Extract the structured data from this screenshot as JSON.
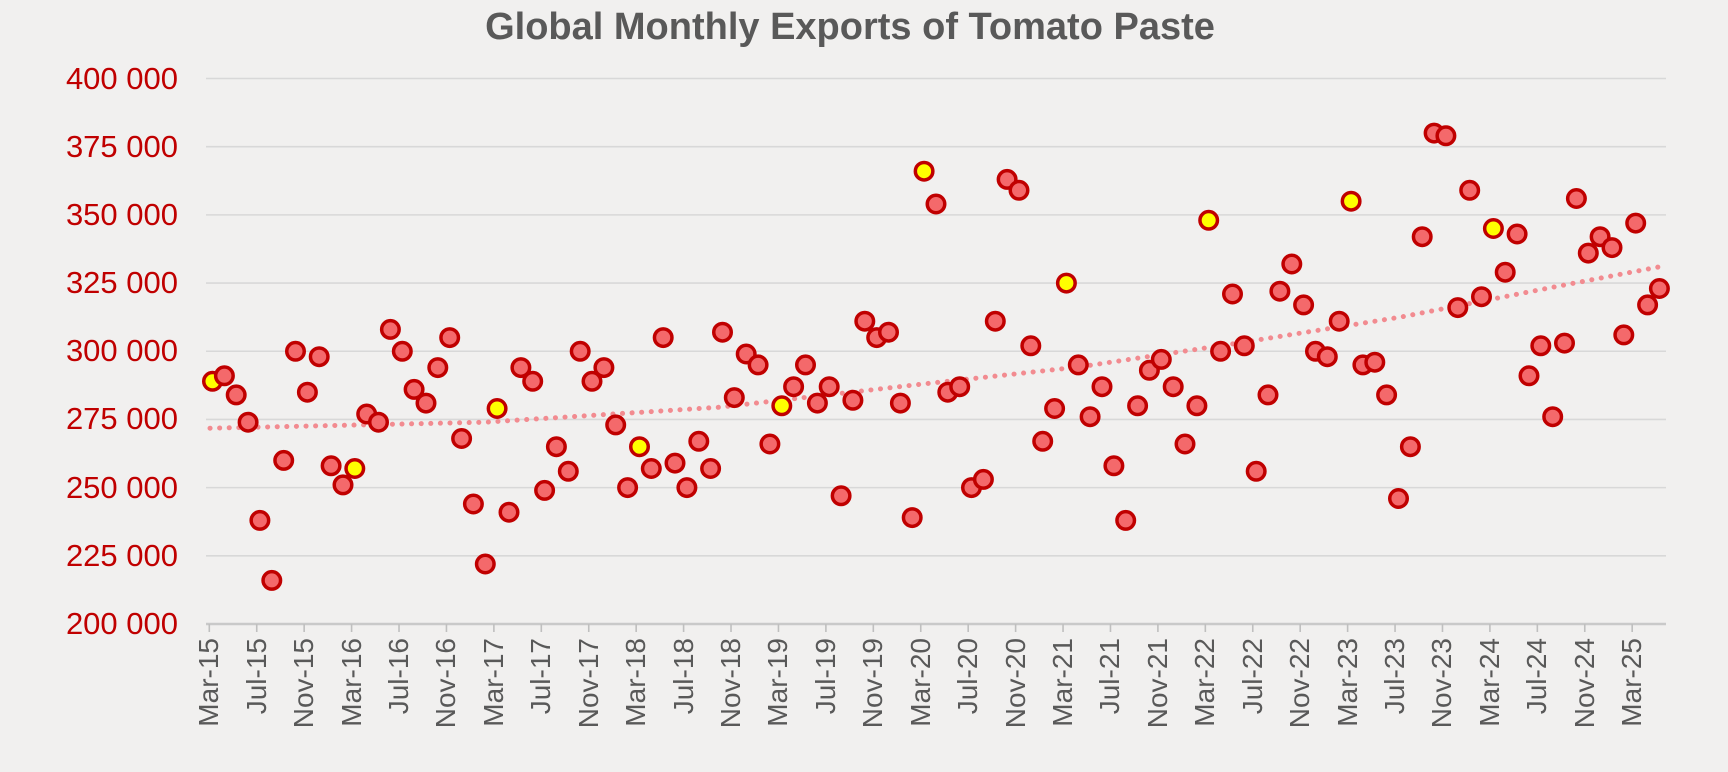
{
  "title": "Global Monthly Exports of Tomato Paste",
  "colors": {
    "background": "#f1f0ef",
    "gridline": "#d8d8d8",
    "axis_line": "#c9c9c9",
    "tick_mark": "#bfbfbf",
    "y_label": "#c00000",
    "x_label": "#595959",
    "title": "#595959",
    "marker_fill": "#f4696b",
    "marker_border": "#c00000",
    "highlight_fill": "#ffff00",
    "trend": "#f28b90"
  },
  "y_axis": {
    "tick_labels": [
      "400 000",
      "375 000",
      "350 000",
      "325 000",
      "300 000",
      "275 000",
      "250 000",
      "225 000",
      "200 000"
    ],
    "min": 200000,
    "max": 400000,
    "step": 25000
  },
  "x_axis": {
    "tick_labels": [
      "Mar-15",
      "Jul-15",
      "Nov-15",
      "Mar-16",
      "Jul-16",
      "Nov-16",
      "Mar-17",
      "Jul-17",
      "Nov-17",
      "Mar-18",
      "Jul-18",
      "Nov-18",
      "Mar-19",
      "Jul-19",
      "Nov-19",
      "Mar-20",
      "Jul-20",
      "Nov-20",
      "Mar-21",
      "Jul-21",
      "Nov-21",
      "Mar-22",
      "Jul-22",
      "Nov-22",
      "Mar-23",
      "Jul-23",
      "Nov-23",
      "Mar-24",
      "Jul-24",
      "Nov-24",
      "Mar-25"
    ]
  },
  "chart_data": {
    "type": "scatter",
    "title": "Global Monthly Exports of Tomato Paste",
    "xlabel": "",
    "ylabel": "",
    "ylim": [
      200000,
      400000
    ],
    "grid": true,
    "legend": false,
    "series_note": "monthly points Mar-15 through May-25; third field 1 = yellow highlighted marker",
    "points": [
      [
        "Mar-15",
        289000,
        1
      ],
      [
        "Apr-15",
        291000,
        0
      ],
      [
        "May-15",
        284000,
        0
      ],
      [
        "Jun-15",
        274000,
        0
      ],
      [
        "Jul-15",
        238000,
        0
      ],
      [
        "Aug-15",
        216000,
        0
      ],
      [
        "Sep-15",
        260000,
        0
      ],
      [
        "Oct-15",
        300000,
        0
      ],
      [
        "Nov-15",
        285000,
        0
      ],
      [
        "Dec-15",
        298000,
        0
      ],
      [
        "Jan-16",
        258000,
        0
      ],
      [
        "Feb-16",
        251000,
        0
      ],
      [
        "Mar-16",
        257000,
        1
      ],
      [
        "Apr-16",
        277000,
        0
      ],
      [
        "May-16",
        274000,
        0
      ],
      [
        "Jun-16",
        308000,
        0
      ],
      [
        "Jul-16",
        300000,
        0
      ],
      [
        "Aug-16",
        286000,
        0
      ],
      [
        "Sep-16",
        281000,
        0
      ],
      [
        "Oct-16",
        294000,
        0
      ],
      [
        "Nov-16",
        305000,
        0
      ],
      [
        "Dec-16",
        268000,
        0
      ],
      [
        "Jan-17",
        244000,
        0
      ],
      [
        "Feb-17",
        222000,
        0
      ],
      [
        "Mar-17",
        279000,
        1
      ],
      [
        "Apr-17",
        241000,
        0
      ],
      [
        "May-17",
        294000,
        0
      ],
      [
        "Jun-17",
        289000,
        0
      ],
      [
        "Jul-17",
        249000,
        0
      ],
      [
        "Aug-17",
        265000,
        0
      ],
      [
        "Sep-17",
        256000,
        0
      ],
      [
        "Oct-17",
        300000,
        0
      ],
      [
        "Nov-17",
        289000,
        0
      ],
      [
        "Dec-17",
        294000,
        0
      ],
      [
        "Jan-18",
        273000,
        0
      ],
      [
        "Feb-18",
        250000,
        0
      ],
      [
        "Mar-18",
        265000,
        1
      ],
      [
        "Apr-18",
        257000,
        0
      ],
      [
        "May-18",
        305000,
        0
      ],
      [
        "Jun-18",
        259000,
        0
      ],
      [
        "Jul-18",
        250000,
        0
      ],
      [
        "Aug-18",
        267000,
        0
      ],
      [
        "Sep-18",
        257000,
        0
      ],
      [
        "Oct-18",
        307000,
        0
      ],
      [
        "Nov-18",
        283000,
        0
      ],
      [
        "Dec-18",
        299000,
        0
      ],
      [
        "Jan-19",
        295000,
        0
      ],
      [
        "Feb-19",
        266000,
        0
      ],
      [
        "Mar-19",
        280000,
        1
      ],
      [
        "Apr-19",
        287000,
        0
      ],
      [
        "May-19",
        295000,
        0
      ],
      [
        "Jun-19",
        281000,
        0
      ],
      [
        "Jul-19",
        287000,
        0
      ],
      [
        "Aug-19",
        247000,
        0
      ],
      [
        "Sep-19",
        282000,
        0
      ],
      [
        "Oct-19",
        311000,
        0
      ],
      [
        "Nov-19",
        305000,
        0
      ],
      [
        "Dec-19",
        307000,
        0
      ],
      [
        "Jan-20",
        281000,
        0
      ],
      [
        "Feb-20",
        239000,
        0
      ],
      [
        "Mar-20",
        366000,
        1
      ],
      [
        "Apr-20",
        354000,
        0
      ],
      [
        "May-20",
        285000,
        0
      ],
      [
        "Jun-20",
        287000,
        0
      ],
      [
        "Jul-20",
        250000,
        0
      ],
      [
        "Aug-20",
        253000,
        0
      ],
      [
        "Sep-20",
        311000,
        0
      ],
      [
        "Oct-20",
        363000,
        0
      ],
      [
        "Nov-20",
        359000,
        0
      ],
      [
        "Dec-20",
        302000,
        0
      ],
      [
        "Jan-21",
        267000,
        0
      ],
      [
        "Feb-21",
        279000,
        0
      ],
      [
        "Mar-21",
        325000,
        1
      ],
      [
        "Apr-21",
        295000,
        0
      ],
      [
        "May-21",
        276000,
        0
      ],
      [
        "Jun-21",
        287000,
        0
      ],
      [
        "Jul-21",
        258000,
        0
      ],
      [
        "Aug-21",
        238000,
        0
      ],
      [
        "Sep-21",
        280000,
        0
      ],
      [
        "Oct-21",
        293000,
        0
      ],
      [
        "Nov-21",
        297000,
        0
      ],
      [
        "Dec-21",
        287000,
        0
      ],
      [
        "Jan-22",
        266000,
        0
      ],
      [
        "Feb-22",
        280000,
        0
      ],
      [
        "Mar-22",
        348000,
        1
      ],
      [
        "Apr-22",
        300000,
        0
      ],
      [
        "May-22",
        321000,
        0
      ],
      [
        "Jun-22",
        302000,
        0
      ],
      [
        "Jul-22",
        256000,
        0
      ],
      [
        "Aug-22",
        284000,
        0
      ],
      [
        "Sep-22",
        322000,
        0
      ],
      [
        "Oct-22",
        332000,
        0
      ],
      [
        "Nov-22",
        317000,
        0
      ],
      [
        "Dec-22",
        300000,
        0
      ],
      [
        "Jan-23",
        298000,
        0
      ],
      [
        "Feb-23",
        311000,
        0
      ],
      [
        "Mar-23",
        355000,
        1
      ],
      [
        "Apr-23",
        295000,
        0
      ],
      [
        "May-23",
        296000,
        0
      ],
      [
        "Jun-23",
        284000,
        0
      ],
      [
        "Jul-23",
        246000,
        0
      ],
      [
        "Aug-23",
        265000,
        0
      ],
      [
        "Sep-23",
        342000,
        0
      ],
      [
        "Oct-23",
        380000,
        0
      ],
      [
        "Nov-23",
        379000,
        0
      ],
      [
        "Dec-23",
        316000,
        0
      ],
      [
        "Jan-24",
        359000,
        0
      ],
      [
        "Feb-24",
        320000,
        0
      ],
      [
        "Mar-24",
        345000,
        1
      ],
      [
        "Apr-24",
        329000,
        0
      ],
      [
        "May-24",
        343000,
        0
      ],
      [
        "Jun-24",
        291000,
        0
      ],
      [
        "Jul-24",
        302000,
        0
      ],
      [
        "Aug-24",
        276000,
        0
      ],
      [
        "Sep-24",
        303000,
        0
      ],
      [
        "Oct-24",
        356000,
        0
      ],
      [
        "Nov-24",
        336000,
        0
      ],
      [
        "Dec-24",
        342000,
        0
      ],
      [
        "Jan-25",
        338000,
        0
      ],
      [
        "Feb-25",
        306000,
        0
      ],
      [
        "Mar-25",
        347000,
        0
      ],
      [
        "Apr-25",
        317000,
        0
      ],
      [
        "May-25",
        323000,
        0
      ]
    ],
    "trend": {
      "style": "dotted",
      "samples": [
        [
          210,
          271800
        ],
        [
          485,
          274000
        ],
        [
          720,
          279500
        ],
        [
          923,
          288000
        ],
        [
          1078,
          294200
        ],
        [
          1238,
          303000
        ],
        [
          1400,
          312500
        ],
        [
          1556,
          323700
        ],
        [
          1660,
          331000
        ]
      ]
    }
  }
}
